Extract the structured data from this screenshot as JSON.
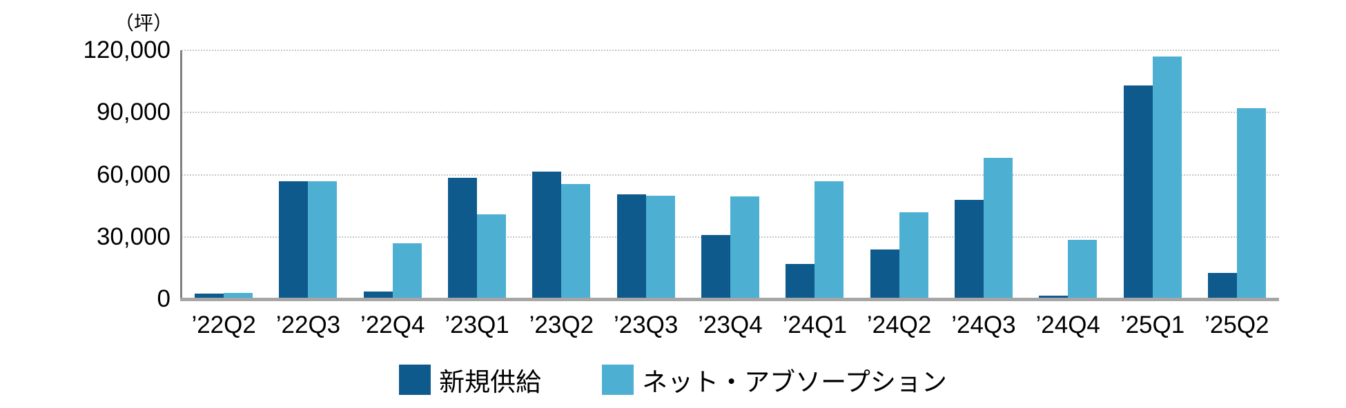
{
  "chart_data": {
    "type": "bar",
    "title": "",
    "unit_label": "（坪）",
    "categories": [
      "’22Q2",
      "’22Q3",
      "’22Q4",
      "’23Q1",
      "’23Q2",
      "’23Q3",
      "’23Q4",
      "’24Q1",
      "’24Q2",
      "’24Q3",
      "’24Q4",
      "’25Q1",
      "’25Q2"
    ],
    "series": [
      {
        "name": "新規供給",
        "color": "#0e5a8c",
        "values": [
          2500,
          57000,
          3500,
          58500,
          61500,
          50500,
          31000,
          17000,
          24000,
          48000,
          1500,
          103000,
          12500
        ]
      },
      {
        "name": "ネット・アブソープション",
        "color": "#4db0d3",
        "values": [
          3000,
          57000,
          27000,
          41000,
          55500,
          50000,
          49500,
          57000,
          42000,
          68000,
          28500,
          117000,
          92000
        ]
      }
    ],
    "xlabel": "",
    "ylabel": "坪",
    "ylim": [
      0,
      120000
    ],
    "yticks": [
      {
        "value": 0,
        "label": "0"
      },
      {
        "value": 30000,
        "label": "30,000"
      },
      {
        "value": 60000,
        "label": "60,000"
      },
      {
        "value": 90000,
        "label": "90,000"
      },
      {
        "value": 120000,
        "label": "120,000"
      }
    ],
    "grid": "horizontal-dotted",
    "legend_position": "bottom",
    "colors": {
      "axis_line": "#808080",
      "baseline": "#a6a6a6",
      "gridline": "#c6c6c6",
      "text": "#000000",
      "background": "#ffffff"
    }
  }
}
